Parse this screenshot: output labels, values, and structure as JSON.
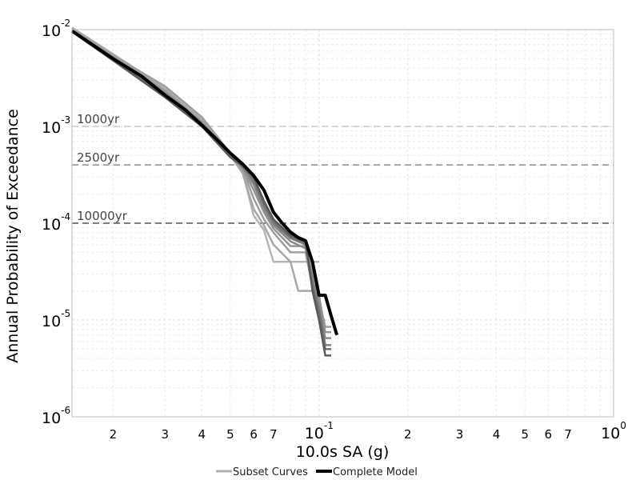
{
  "chart_data": {
    "type": "line",
    "x_scale": "log",
    "y_scale": "log",
    "xlabel": "10.0s SA (g)",
    "ylabel": "Annual Probability of Exceedance",
    "xlim": [
      0.0145,
      1.0
    ],
    "ylim": [
      1e-06,
      0.01
    ],
    "grid": true,
    "legend_position": "bottom",
    "x_ticks": [
      {
        "value": 0.02,
        "base": "2",
        "exp": ""
      },
      {
        "value": 0.03,
        "base": "3",
        "exp": ""
      },
      {
        "value": 0.04,
        "base": "4",
        "exp": ""
      },
      {
        "value": 0.05,
        "base": "5",
        "exp": ""
      },
      {
        "value": 0.06,
        "base": "6",
        "exp": ""
      },
      {
        "value": 0.07,
        "base": "7",
        "exp": ""
      },
      {
        "value": 0.1,
        "base": "10",
        "exp": "-1"
      },
      {
        "value": 0.2,
        "base": "2",
        "exp": ""
      },
      {
        "value": 0.3,
        "base": "3",
        "exp": ""
      },
      {
        "value": 0.4,
        "base": "4",
        "exp": ""
      },
      {
        "value": 0.5,
        "base": "5",
        "exp": ""
      },
      {
        "value": 0.6,
        "base": "6",
        "exp": ""
      },
      {
        "value": 0.7,
        "base": "7",
        "exp": ""
      },
      {
        "value": 1.0,
        "base": "10",
        "exp": "0"
      }
    ],
    "y_ticks": [
      {
        "value": 0.01,
        "base": "10",
        "exp": "-2"
      },
      {
        "value": 0.001,
        "base": "10",
        "exp": "-3"
      },
      {
        "value": 0.0001,
        "base": "10",
        "exp": "-4"
      },
      {
        "value": 1e-05,
        "base": "10",
        "exp": "-5"
      },
      {
        "value": 1e-06,
        "base": "10",
        "exp": "-6"
      }
    ],
    "return_periods": [
      {
        "label": "1000yr",
        "value": 0.001,
        "color": "#c8c8c8"
      },
      {
        "label": "2500yr",
        "value": 0.0004,
        "color": "#8c8c8c"
      },
      {
        "label": "10000yr",
        "value": 0.0001,
        "color": "#555555"
      }
    ],
    "legend": [
      {
        "label": "Subset Curves",
        "color": "#b0b0b0"
      },
      {
        "label": "Complete Model",
        "color": "#000000"
      }
    ],
    "series": [
      {
        "role": "subset",
        "color": "#b5b5b5",
        "width": 2.5,
        "points": [
          [
            0.0145,
            0.0105
          ],
          [
            0.02,
            0.0056
          ],
          [
            0.03,
            0.0025
          ],
          [
            0.04,
            0.0012
          ],
          [
            0.05,
            0.00052
          ],
          [
            0.055,
            0.00034
          ],
          [
            0.06,
            0.00012
          ],
          [
            0.065,
            8.5e-05
          ],
          [
            0.07,
            4e-05
          ],
          [
            0.08,
            4e-05
          ],
          [
            0.1,
            4e-05
          ]
        ]
      },
      {
        "role": "subset",
        "color": "#a8a8a8",
        "width": 2.5,
        "points": [
          [
            0.0145,
            0.0103
          ],
          [
            0.02,
            0.0055
          ],
          [
            0.03,
            0.0024
          ],
          [
            0.04,
            0.00115
          ],
          [
            0.05,
            0.0005
          ],
          [
            0.055,
            0.00033
          ],
          [
            0.06,
            0.00014
          ],
          [
            0.065,
            9.5e-05
          ],
          [
            0.07,
            6e-05
          ],
          [
            0.08,
            4e-05
          ],
          [
            0.085,
            2e-05
          ],
          [
            0.095,
            2e-05
          ],
          [
            0.1,
            1e-05
          ],
          [
            0.105,
            1e-05
          ]
        ]
      },
      {
        "role": "subset",
        "color": "#9e9e9e",
        "width": 2.5,
        "points": [
          [
            0.0145,
            0.0101
          ],
          [
            0.02,
            0.0054
          ],
          [
            0.03,
            0.0026
          ],
          [
            0.04,
            0.00125
          ],
          [
            0.05,
            0.00053
          ],
          [
            0.055,
            0.00036
          ],
          [
            0.06,
            0.00018
          ],
          [
            0.065,
            0.00011
          ],
          [
            0.07,
            8e-05
          ],
          [
            0.08,
            5e-05
          ],
          [
            0.09,
            5e-05
          ],
          [
            0.095,
            2.2e-05
          ],
          [
            0.1,
            1.6e-05
          ],
          [
            0.105,
            8.5e-06
          ],
          [
            0.11,
            8.5e-06
          ]
        ]
      },
      {
        "role": "subset",
        "color": "#959595",
        "width": 2.5,
        "points": [
          [
            0.0145,
            0.0099
          ],
          [
            0.02,
            0.0052
          ],
          [
            0.03,
            0.0023
          ],
          [
            0.04,
            0.0011
          ],
          [
            0.05,
            0.00052
          ],
          [
            0.055,
            0.00037
          ],
          [
            0.06,
            0.00022
          ],
          [
            0.065,
            0.00013
          ],
          [
            0.07,
            8.8e-05
          ],
          [
            0.08,
            5.8e-05
          ],
          [
            0.09,
            5.8e-05
          ],
          [
            0.095,
            3e-05
          ],
          [
            0.1,
            1.8e-05
          ],
          [
            0.105,
            7.5e-06
          ],
          [
            0.11,
            7.5e-06
          ]
        ]
      },
      {
        "role": "subset",
        "color": "#8a8a8a",
        "width": 2.5,
        "points": [
          [
            0.0145,
            0.0098
          ],
          [
            0.02,
            0.0051
          ],
          [
            0.03,
            0.0022
          ],
          [
            0.04,
            0.00108
          ],
          [
            0.05,
            0.00051
          ],
          [
            0.055,
            0.00038
          ],
          [
            0.06,
            0.00025
          ],
          [
            0.065,
            0.00014
          ],
          [
            0.07,
            9.5e-05
          ],
          [
            0.08,
            6.5e-05
          ],
          [
            0.09,
            5.5e-05
          ],
          [
            0.095,
            2.8e-05
          ],
          [
            0.1,
            1.4e-05
          ],
          [
            0.105,
            6.5e-06
          ],
          [
            0.11,
            6.5e-06
          ]
        ]
      },
      {
        "role": "subset",
        "color": "#7e7e7e",
        "width": 2.5,
        "points": [
          [
            0.0145,
            0.0097
          ],
          [
            0.02,
            0.005
          ],
          [
            0.03,
            0.0021
          ],
          [
            0.04,
            0.00105
          ],
          [
            0.05,
            0.0005
          ],
          [
            0.055,
            0.00039
          ],
          [
            0.06,
            0.00027
          ],
          [
            0.065,
            0.00015
          ],
          [
            0.07,
            0.0001
          ],
          [
            0.08,
            7e-05
          ],
          [
            0.09,
            6e-05
          ],
          [
            0.095,
            2.5e-05
          ],
          [
            0.1,
            1.3e-05
          ],
          [
            0.105,
            5.5e-06
          ],
          [
            0.11,
            5.5e-06
          ]
        ]
      },
      {
        "role": "subset",
        "color": "#6e6e6e",
        "width": 2.5,
        "points": [
          [
            0.0145,
            0.0096
          ],
          [
            0.02,
            0.0049
          ],
          [
            0.03,
            0.00205
          ],
          [
            0.04,
            0.00102
          ],
          [
            0.05,
            0.00049
          ],
          [
            0.055,
            0.00039
          ],
          [
            0.06,
            0.00029
          ],
          [
            0.065,
            0.00016
          ],
          [
            0.07,
            0.000105
          ],
          [
            0.08,
            7.2e-05
          ],
          [
            0.09,
            6.3e-05
          ],
          [
            0.095,
            2.2e-05
          ],
          [
            0.1,
            1.2e-05
          ],
          [
            0.105,
            5e-06
          ],
          [
            0.11,
            5e-06
          ]
        ]
      },
      {
        "role": "subset",
        "color": "#5a5a5a",
        "width": 2.5,
        "points": [
          [
            0.0145,
            0.0095
          ],
          [
            0.02,
            0.0048
          ],
          [
            0.03,
            0.002
          ],
          [
            0.04,
            0.001
          ],
          [
            0.05,
            0.00048
          ],
          [
            0.055,
            0.00039
          ],
          [
            0.06,
            0.0003
          ],
          [
            0.065,
            0.00017
          ],
          [
            0.07,
            0.00011
          ],
          [
            0.08,
            7.5e-05
          ],
          [
            0.09,
            6.6e-05
          ],
          [
            0.095,
            2e-05
          ],
          [
            0.1,
            1e-05
          ],
          [
            0.105,
            4.3e-06
          ],
          [
            0.11,
            4.3e-06
          ]
        ]
      },
      {
        "role": "complete",
        "color": "#000000",
        "width": 4,
        "points": [
          [
            0.0145,
            0.0097
          ],
          [
            0.02,
            0.005
          ],
          [
            0.025,
            0.0033
          ],
          [
            0.03,
            0.0021
          ],
          [
            0.035,
            0.0015
          ],
          [
            0.04,
            0.00103
          ],
          [
            0.045,
            0.00073
          ],
          [
            0.05,
            0.00053
          ],
          [
            0.055,
            0.00041
          ],
          [
            0.06,
            0.00031
          ],
          [
            0.065,
            0.00022
          ],
          [
            0.07,
            0.00013
          ],
          [
            0.075,
            0.0001
          ],
          [
            0.08,
            8.1e-05
          ],
          [
            0.085,
            7.1e-05
          ],
          [
            0.09,
            6.6e-05
          ],
          [
            0.095,
            4e-05
          ],
          [
            0.1,
            1.8e-05
          ],
          [
            0.105,
            1.8e-05
          ],
          [
            0.11,
            1.1e-05
          ],
          [
            0.115,
            7e-06
          ]
        ]
      }
    ]
  }
}
